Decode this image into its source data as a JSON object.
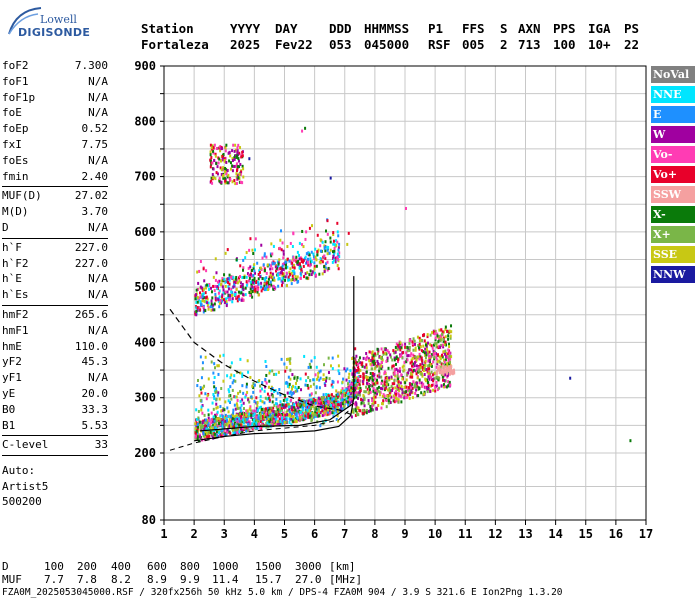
{
  "logo": {
    "line1": "Lowell",
    "line2": "DIGISONDE"
  },
  "header": {
    "row1": [
      "Station",
      "YYYY",
      "DAY",
      "DDD",
      "HHMMSS",
      "P1",
      "FFS",
      "S",
      "AXN",
      "PPS",
      "IGA",
      "PS"
    ],
    "row2": [
      "Fortaleza",
      "2025",
      "Fev22",
      "053",
      "045000",
      "RSF",
      "005",
      "2",
      "713",
      "100",
      "10+",
      "22"
    ]
  },
  "params": {
    "group1": [
      {
        "name": "foF2",
        "value": "7.300"
      },
      {
        "name": "foF1",
        "value": "N/A"
      },
      {
        "name": "foF1p",
        "value": "N/A"
      },
      {
        "name": "foE",
        "value": "N/A"
      },
      {
        "name": "foEp",
        "value": "0.52"
      },
      {
        "name": "fxI",
        "value": "7.75"
      },
      {
        "name": "foEs",
        "value": "N/A"
      },
      {
        "name": "fmin",
        "value": "2.40"
      }
    ],
    "group2": [
      {
        "name": "MUF(D)",
        "value": "27.02"
      },
      {
        "name": "M(D)",
        "value": "3.70"
      },
      {
        "name": "D",
        "value": "N/A"
      }
    ],
    "group3": [
      {
        "name": "h`F",
        "value": "227.0"
      },
      {
        "name": "h`F2",
        "value": "227.0"
      },
      {
        "name": "h`E",
        "value": "N/A"
      },
      {
        "name": "h`Es",
        "value": "N/A"
      }
    ],
    "group4": [
      {
        "name": "hmF2",
        "value": "265.6"
      },
      {
        "name": "hmF1",
        "value": "N/A"
      },
      {
        "name": "hmE",
        "value": "110.0"
      },
      {
        "name": "yF2",
        "value": "45.3"
      },
      {
        "name": "yF1",
        "value": "N/A"
      },
      {
        "name": "yE",
        "value": "20.0"
      },
      {
        "name": "B0",
        "value": "33.3"
      },
      {
        "name": "B1",
        "value": "5.53"
      }
    ],
    "group5": [
      {
        "name": "C-level",
        "value": "33"
      }
    ],
    "auto": {
      "line1": "Auto:",
      "line2": "Artist5",
      "line3": "500200"
    }
  },
  "legend": [
    {
      "label": "NoVal",
      "color": "#808080",
      "text": "#ffffff"
    },
    {
      "label": "NNE",
      "color": "#00e5ff",
      "text": "#ffffff"
    },
    {
      "label": "E",
      "color": "#1e90ff",
      "text": "#ffffff"
    },
    {
      "label": "W",
      "color": "#a000a0",
      "text": "#ffffff"
    },
    {
      "label": "Vo-",
      "color": "#ff3cb4",
      "text": "#ffffff"
    },
    {
      "label": "Vo+",
      "color": "#e8002a",
      "text": "#ffffff"
    },
    {
      "label": "SSW",
      "color": "#f5a0a0",
      "text": "#ffffff"
    },
    {
      "label": "X-",
      "color": "#0a7a0a",
      "text": "#ffffff"
    },
    {
      "label": "X+",
      "color": "#7ab648",
      "text": "#ffffff"
    },
    {
      "label": "SSE",
      "color": "#c8c814",
      "text": "#ffffff"
    },
    {
      "label": "NNW",
      "color": "#1a1aa0",
      "text": "#ffffff"
    }
  ],
  "chart_data": {
    "type": "scatter",
    "xticks": [
      "1",
      "2",
      "3",
      "4",
      "5",
      "6",
      "7",
      "8",
      "9",
      "10",
      "11",
      "12",
      "13",
      "14",
      "15",
      "16",
      "17"
    ],
    "yticks": [
      "80",
      "200",
      "300",
      "400",
      "500",
      "600",
      "700",
      "800",
      "900"
    ],
    "xlim": [
      1,
      17
    ],
    "ylim": [
      80,
      900
    ],
    "grid": true,
    "legend_position": "right",
    "clusters": [
      {
        "name": "F trace",
        "x": [
          2.0,
          7.5
        ],
        "y": [
          225,
          305
        ],
        "colors": [
          "#e8002a",
          "#ff3cb4",
          "#1e90ff",
          "#00e5ff",
          "#0a7a0a",
          "#7ab648",
          "#c8c814",
          "#a000a0"
        ]
      },
      {
        "name": "F spread",
        "x": [
          7.2,
          10.5
        ],
        "y": [
          270,
          420
        ],
        "colors": [
          "#e8002a",
          "#ff3cb4",
          "#7ab648",
          "#c8c814",
          "#a000a0",
          "#0a7a0a"
        ]
      },
      {
        "name": "2F trace",
        "x": [
          2.0,
          6.8
        ],
        "y": [
          450,
          580
        ],
        "colors": [
          "#e8002a",
          "#ff3cb4",
          "#1e90ff",
          "#00e5ff",
          "#0a7a0a",
          "#c8c814",
          "#a000a0"
        ]
      },
      {
        "name": "3F trace",
        "x": [
          2.5,
          3.6
        ],
        "y": [
          690,
          760
        ],
        "colors": [
          "#e8002a",
          "#ff3cb4",
          "#0a7a0a",
          "#c8c814",
          "#a000a0"
        ]
      }
    ],
    "profile_solid": [
      [
        2.0,
        222
      ],
      [
        3.0,
        230
      ],
      [
        4.0,
        235
      ],
      [
        5.0,
        237
      ],
      [
        6.0,
        240
      ],
      [
        6.8,
        248
      ],
      [
        7.2,
        268
      ],
      [
        7.3,
        300
      ],
      [
        7.3,
        400
      ],
      [
        7.3,
        520
      ]
    ],
    "profile_dashed": [
      [
        1.2,
        460
      ],
      [
        2.0,
        400
      ],
      [
        3.0,
        360
      ],
      [
        4.0,
        330
      ],
      [
        5.0,
        305
      ],
      [
        6.0,
        285
      ],
      [
        6.8,
        278
      ],
      [
        7.2,
        270
      ]
    ],
    "underlying_line": [
      [
        1.2,
        205
      ],
      [
        2.0,
        218
      ],
      [
        3.0,
        230
      ],
      [
        4.0,
        240
      ],
      [
        5.0,
        245
      ],
      [
        6.0,
        250
      ],
      [
        6.8,
        260
      ],
      [
        7.2,
        280
      ]
    ]
  },
  "bottom": {
    "d_label": "D",
    "d_values": [
      "100",
      "200",
      "400",
      "600",
      "800",
      "1000",
      "1500",
      "3000"
    ],
    "d_unit": "[km]",
    "muf_label": "MUF",
    "muf_values": [
      "7.7",
      "7.8",
      "8.2",
      "8.9",
      "9.9",
      "11.4",
      "15.7",
      "27.0"
    ],
    "muf_unit": "[MHz]"
  },
  "footer": "FZA0M_2025053045000.RSF / 320fx256h 50 kHz 5.0 km / DPS-4 FZA0M 904 / 3.9 S 321.6 E   Ion2Png 1.3.20"
}
